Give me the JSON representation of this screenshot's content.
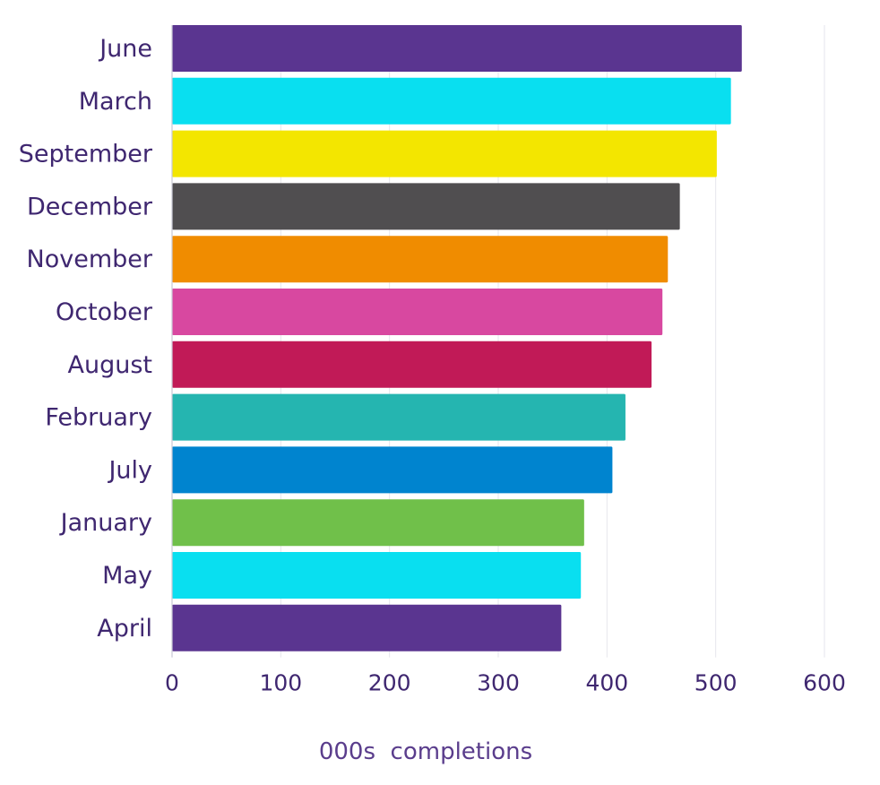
{
  "chart_data": {
    "type": "bar",
    "orientation": "horizontal",
    "title": "",
    "xlabel": "000s  completions",
    "ylabel": "",
    "xlim": [
      0,
      600
    ],
    "xticks": [
      0,
      100,
      200,
      300,
      400,
      500,
      600
    ],
    "grid": true,
    "legend": "none",
    "categories": [
      "June",
      "March",
      "September",
      "December",
      "November",
      "October",
      "August",
      "February",
      "July",
      "January",
      "May",
      "April"
    ],
    "values": [
      524,
      514,
      501,
      467,
      456,
      451,
      441,
      417,
      405,
      379,
      376,
      358
    ],
    "colors": [
      "#5a3590",
      "#09dff0",
      "#f3e600",
      "#504e50",
      "#f08c00",
      "#d848a0",
      "#c11a57",
      "#25b5b0",
      "#0084cf",
      "#70c04a",
      "#09dff0",
      "#5a3590"
    ]
  }
}
